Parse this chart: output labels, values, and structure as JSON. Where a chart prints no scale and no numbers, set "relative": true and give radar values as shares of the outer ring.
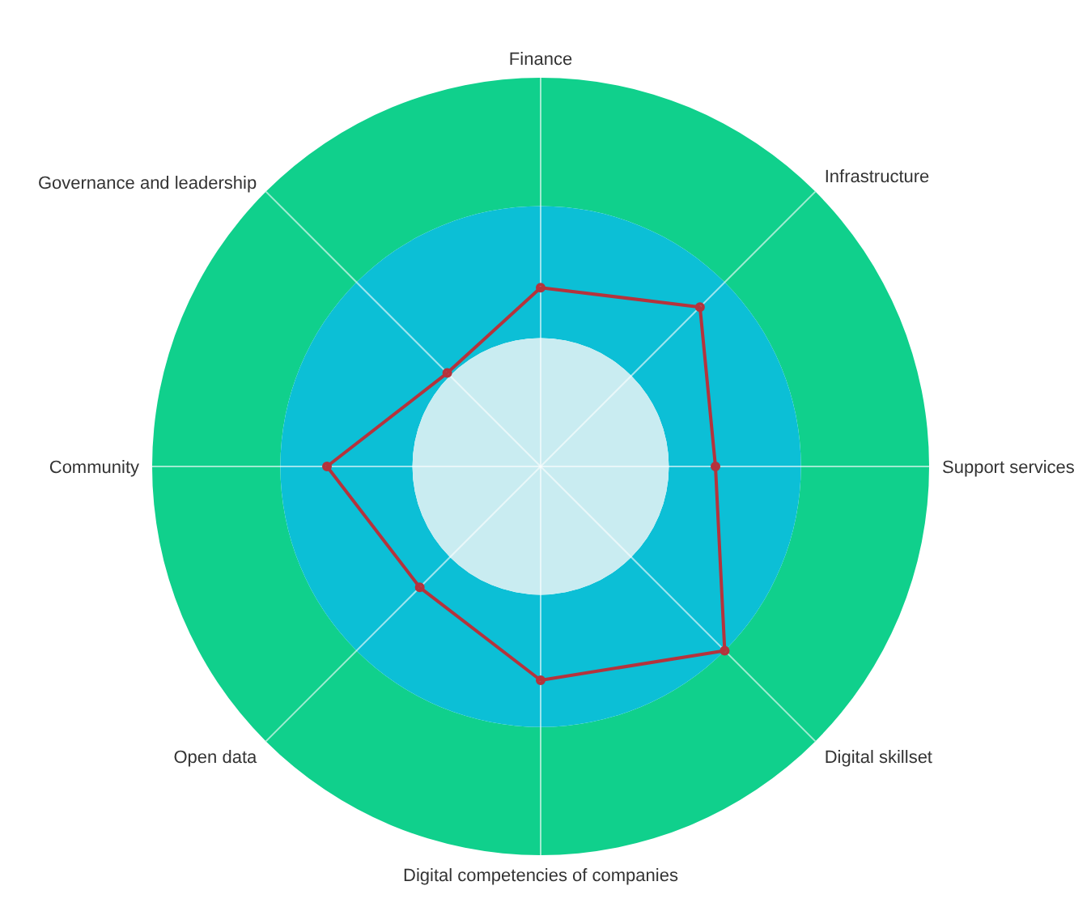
{
  "chart_data": {
    "type": "radar",
    "relative": true,
    "categories": [
      "Finance",
      "Infrastructure",
      "Support services",
      "Digital skillset",
      "Digital competencies of companies",
      "Open data",
      "Community",
      "Governance and leadership"
    ],
    "series": [
      {
        "color": "#b5333c",
        "values": [
          0.46,
          0.58,
          0.45,
          0.67,
          0.55,
          0.44,
          0.55,
          0.34
        ]
      }
    ],
    "grid": true,
    "marker": "circle",
    "line_style": "solid"
  }
}
